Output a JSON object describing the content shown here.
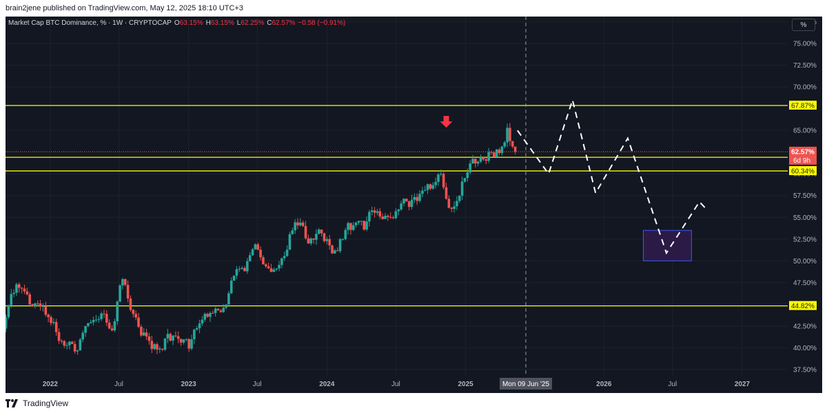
{
  "header": {
    "publish_line": "brain2jene published on TradingView.com, May 12, 2025 18:10 UTC+3"
  },
  "legend": {
    "symbol": "Market Cap BTC Dominance, % · 1W · CRYPTOCAP",
    "open_label": "O",
    "open": "63.15%",
    "high_label": "H",
    "high": "63.15%",
    "low_label": "L",
    "low": "62.25%",
    "close_label": "C",
    "close": "62.57%",
    "change": "−0.58 (−0.91%)"
  },
  "scale_button": "%",
  "footer": {
    "brand": "TradingView"
  },
  "colors": {
    "background": "#131722",
    "up": "#26a69a",
    "down": "#ef5350",
    "level_line": "#ffff00",
    "grid": "#1e222d",
    "axis_text": "#b2b5be",
    "zone_fill": "#2a1a45",
    "zone_border": "#3d5afe",
    "arrow": "#f23645"
  },
  "chart_data": {
    "type": "candlestick",
    "title": "Market Cap BTC Dominance, % · 1W · CRYPTOCAP",
    "xlabel": "",
    "ylabel": "",
    "y_unit": "%",
    "ylim": [
      36.7,
      78.1
    ],
    "y_ticks": [
      37.5,
      40,
      42.5,
      45,
      47.5,
      50,
      52.5,
      55,
      57.5,
      60,
      62.5,
      65,
      70,
      72.5,
      75,
      77.5
    ],
    "y_tick_labels": [
      "37.50%",
      "40.00%",
      "42.50%",
      "45.00%",
      "47.50%",
      "50.00%",
      "52.50%",
      "55.00%",
      "57.50%",
      "60.00%",
      "62.50%",
      "65.00%",
      "70.00%",
      "72.50%",
      "75.00%",
      "77.50%"
    ],
    "xlim": [
      "2021-09-05",
      "2027-05-01"
    ],
    "x_ticks": [
      {
        "date": "2022-01-01",
        "label": "2022",
        "bold": true
      },
      {
        "date": "2022-07-01",
        "label": "Jul",
        "bold": false
      },
      {
        "date": "2023-01-01",
        "label": "2023",
        "bold": true
      },
      {
        "date": "2023-07-01",
        "label": "Jul",
        "bold": false
      },
      {
        "date": "2024-01-01",
        "label": "2024",
        "bold": true
      },
      {
        "date": "2024-07-01",
        "label": "Jul",
        "bold": false
      },
      {
        "date": "2025-01-01",
        "label": "2025",
        "bold": true
      },
      {
        "date": "2026-01-01",
        "label": "2026",
        "bold": true
      },
      {
        "date": "2026-07-01",
        "label": "Jul",
        "bold": false
      },
      {
        "date": "2027-01-01",
        "label": "2027",
        "bold": true
      }
    ],
    "crosshair": {
      "date": "2025-06-09",
      "label": "Mon 09 Jun '25"
    },
    "horizontal_levels": [
      {
        "value": 67.87,
        "label": "67.87%"
      },
      {
        "value": 61.91,
        "label": "61.91%"
      },
      {
        "value": 60.34,
        "label": "60.34%"
      },
      {
        "value": 44.82,
        "label": "44.82%"
      }
    ],
    "last_price": {
      "value": 62.57,
      "label": "62.57%",
      "countdown": "6d 9h"
    },
    "projection_path": [
      {
        "date": "2025-05-18",
        "value": 65.0
      },
      {
        "date": "2025-08-08",
        "value": 60.0
      },
      {
        "date": "2025-10-10",
        "value": 68.5
      },
      {
        "date": "2025-12-10",
        "value": 57.8
      },
      {
        "date": "2026-03-05",
        "value": 64.1
      },
      {
        "date": "2026-06-15",
        "value": 50.9
      },
      {
        "date": "2026-09-10",
        "value": 56.8
      },
      {
        "date": "2026-09-25",
        "value": 56.1
      }
    ],
    "target_zone": {
      "date_from": "2026-04-15",
      "date_to": "2026-08-20",
      "value_from": 50.0,
      "value_to": 53.5
    },
    "signal_arrow": {
      "date": "2024-11-11",
      "value": 65.4,
      "direction": "down"
    },
    "series": [
      {
        "weeks": [
          [
            "2021-09-06",
            42.2,
            47.3,
            48.0,
            41.8
          ],
          [
            "2021-10-11",
            47.3,
            45.0,
            47.8,
            44.5
          ],
          [
            "2021-11-15",
            45.0,
            44.8,
            45.5,
            44.0
          ],
          [
            "2021-12-20",
            44.8,
            41.8,
            45.3,
            41.0
          ],
          [
            "2022-01-24",
            41.8,
            40.3,
            42.3,
            39.8
          ],
          [
            "2022-02-21",
            40.3,
            39.7,
            40.8,
            39.2
          ],
          [
            "2022-03-21",
            39.7,
            42.5,
            43.0,
            39.5
          ],
          [
            "2022-04-11",
            42.5,
            43.2,
            43.6,
            42.0
          ],
          [
            "2022-05-02",
            43.2,
            43.9,
            44.4,
            42.8
          ],
          [
            "2022-05-30",
            43.9,
            42.0,
            44.5,
            41.6
          ],
          [
            "2022-06-20",
            42.0,
            45.3,
            46.2,
            41.8
          ],
          [
            "2022-07-04",
            45.3,
            47.9,
            48.4,
            45.0
          ],
          [
            "2022-07-18",
            47.9,
            43.9,
            48.1,
            43.5
          ],
          [
            "2022-08-15",
            43.9,
            41.3,
            44.3,
            40.9
          ],
          [
            "2022-09-19",
            41.3,
            39.8,
            41.8,
            39.2
          ],
          [
            "2022-10-17",
            39.8,
            41.6,
            42.2,
            39.4
          ],
          [
            "2022-11-14",
            41.6,
            40.6,
            42.3,
            40.2
          ],
          [
            "2022-12-19",
            40.6,
            39.9,
            41.1,
            39.5
          ],
          [
            "2023-01-09",
            39.9,
            42.8,
            43.4,
            39.7
          ],
          [
            "2023-02-06",
            42.8,
            44.0,
            44.7,
            42.5
          ],
          [
            "2023-03-06",
            44.0,
            44.3,
            44.9,
            43.6
          ],
          [
            "2023-03-27",
            44.3,
            44.6,
            45.2,
            44.0
          ],
          [
            "2023-04-10",
            44.6,
            48.3,
            48.9,
            44.4
          ],
          [
            "2023-05-08",
            48.3,
            48.8,
            49.4,
            47.9
          ],
          [
            "2023-06-05",
            48.8,
            51.9,
            52.4,
            48.5
          ],
          [
            "2023-07-03",
            51.9,
            49.6,
            52.1,
            49.2
          ],
          [
            "2023-07-24",
            49.6,
            49.0,
            50.2,
            48.6
          ],
          [
            "2023-08-21",
            49.0,
            50.3,
            50.8,
            48.8
          ],
          [
            "2023-09-11",
            50.3,
            53.5,
            54.0,
            50.0
          ],
          [
            "2023-10-09",
            53.5,
            54.4,
            54.9,
            53.1
          ],
          [
            "2023-10-30",
            54.4,
            52.0,
            54.8,
            51.6
          ],
          [
            "2023-11-20",
            52.0,
            53.6,
            54.2,
            51.7
          ],
          [
            "2023-12-18",
            53.6,
            52.5,
            54.1,
            50.7
          ],
          [
            "2024-01-08",
            52.5,
            51.2,
            53.6,
            50.8
          ],
          [
            "2024-01-29",
            51.2,
            52.5,
            53.1,
            50.9
          ],
          [
            "2024-02-19",
            52.5,
            54.1,
            54.6,
            52.2
          ],
          [
            "2024-03-18",
            54.1,
            53.6,
            54.6,
            53.2
          ],
          [
            "2024-04-15",
            53.6,
            55.8,
            56.3,
            53.4
          ],
          [
            "2024-05-06",
            55.8,
            55.1,
            56.2,
            54.7
          ],
          [
            "2024-05-27",
            55.1,
            55.0,
            55.6,
            54.6
          ],
          [
            "2024-06-24",
            55.0,
            56.6,
            57.1,
            54.8
          ],
          [
            "2024-07-22",
            56.6,
            56.2,
            57.2,
            55.8
          ],
          [
            "2024-08-12",
            56.2,
            57.7,
            58.2,
            55.9
          ],
          [
            "2024-09-09",
            57.7,
            58.3,
            58.9,
            57.3
          ],
          [
            "2024-10-07",
            58.3,
            60.0,
            60.5,
            57.9
          ],
          [
            "2024-11-04",
            60.0,
            56.1,
            60.8,
            55.6
          ],
          [
            "2024-11-25",
            56.1,
            57.5,
            58.1,
            54.9
          ],
          [
            "2024-12-23",
            57.5,
            61.2,
            64.3,
            56.8
          ],
          [
            "2025-01-20",
            61.2,
            61.4,
            62.5,
            60.5
          ],
          [
            "2025-02-10",
            61.4,
            62.5,
            63.0,
            60.9
          ],
          [
            "2025-03-10",
            62.5,
            62.4,
            63.0,
            61.9
          ],
          [
            "2025-04-07",
            62.4,
            65.3,
            65.8,
            62.1
          ],
          [
            "2025-04-28",
            65.3,
            63.15,
            65.9,
            62.4
          ],
          [
            "2025-05-12",
            63.15,
            62.57,
            63.15,
            62.25
          ]
        ]
      }
    ]
  }
}
